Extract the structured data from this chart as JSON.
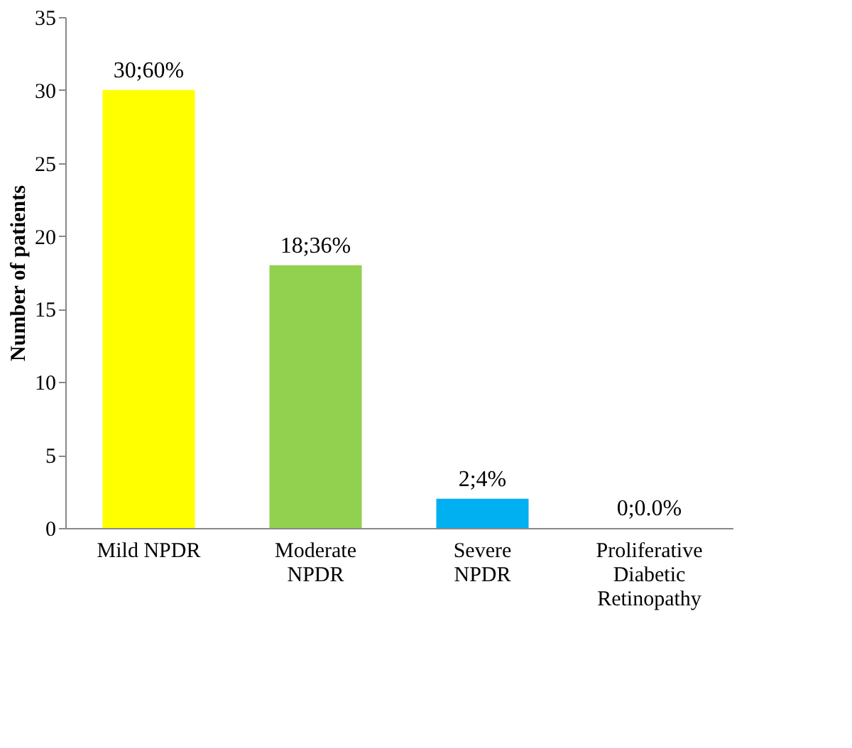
{
  "chart_data": {
    "type": "bar",
    "ylabel": "Number of patients",
    "categories": [
      "Mild NPDR",
      "Moderate NPDR",
      "Severe NPDR",
      "Proliferative Diabetic Retinopathy"
    ],
    "values": [
      30,
      18,
      2,
      0
    ],
    "colors": [
      "#ffff00",
      "#92d050",
      "#00b0f0",
      "#00b0f0"
    ],
    "value_labels": [
      "30;60%",
      "18;36%",
      "2;4%",
      "0;0.0%"
    ],
    "ylim": [
      0,
      35
    ],
    "yticks": [
      0,
      5,
      10,
      15,
      20,
      25,
      30,
      35
    ],
    "grid": false
  }
}
